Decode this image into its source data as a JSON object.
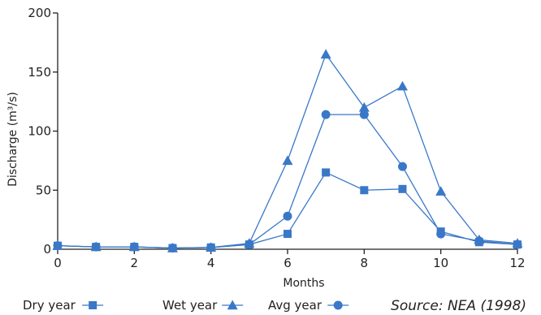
{
  "chart_data": {
    "type": "line",
    "xlabel": "Months",
    "ylabel": "Discharge (m³/s)",
    "xlim": [
      0,
      12
    ],
    "ylim": [
      0,
      200
    ],
    "x_ticks": [
      0,
      2,
      4,
      6,
      8,
      10,
      12
    ],
    "y_ticks": [
      0,
      50,
      100,
      150,
      200
    ],
    "grid": false,
    "legend_position": "bottom-left",
    "source": "Source:  NEA (1998)",
    "line_color": "#3a78c7",
    "series": [
      {
        "name": "Dry year",
        "marker": "square",
        "x": [
          0,
          1,
          2,
          3,
          4,
          5,
          6,
          7,
          8,
          9,
          10,
          11,
          12
        ],
        "values": [
          3,
          2,
          2,
          1,
          1.5,
          4,
          13,
          65,
          50,
          51,
          15,
          6,
          4
        ]
      },
      {
        "name": "Wet year",
        "marker": "triangle",
        "x": [
          0,
          1,
          2,
          3,
          4,
          5,
          6,
          7,
          8,
          9,
          10,
          11,
          12
        ],
        "values": [
          3,
          2,
          2,
          1,
          1.5,
          5,
          75,
          165,
          120,
          138,
          49,
          8,
          5
        ]
      },
      {
        "name": "Avg year",
        "marker": "circle",
        "x": [
          0,
          1,
          2,
          3,
          4,
          5,
          6,
          7,
          8,
          9,
          10,
          11,
          12
        ],
        "values": [
          3,
          2,
          2,
          1,
          1.5,
          4,
          28,
          114,
          114,
          70,
          13,
          7,
          4
        ]
      }
    ]
  }
}
